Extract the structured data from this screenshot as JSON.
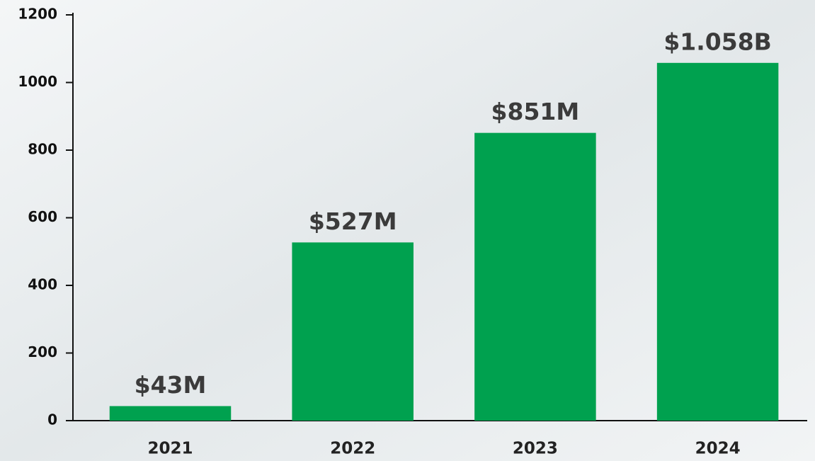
{
  "chart_data": {
    "type": "bar",
    "categories": [
      "2021",
      "2022",
      "2023",
      "2024"
    ],
    "values": [
      43,
      527,
      851,
      1058
    ],
    "value_labels": [
      "$43M",
      "$527M",
      "$851M",
      "$1.058B"
    ],
    "color": "#00a14f",
    "ylim": [
      0,
      1200
    ],
    "yticks": [
      0,
      200,
      400,
      600,
      800,
      1000,
      1200
    ]
  }
}
